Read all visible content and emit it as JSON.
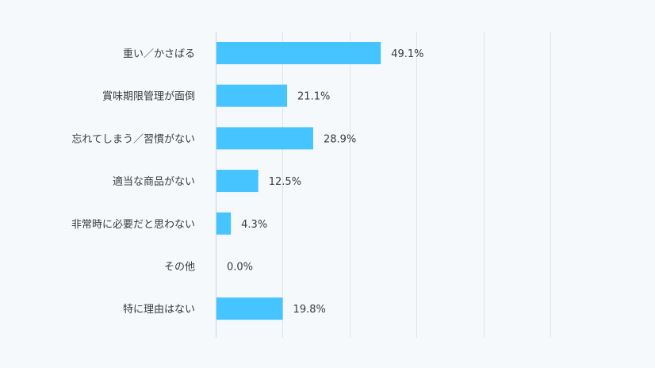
{
  "chart_data": {
    "type": "bar",
    "orientation": "horizontal",
    "categories": [
      "重い／かさばる",
      "賞味期限管理が面倒",
      "忘れてしまう／習慣がない",
      "適当な商品がない",
      "非常時に必要だと思わない",
      "その他",
      "特に理由はない"
    ],
    "values": [
      49.1,
      21.1,
      28.9,
      12.5,
      4.3,
      0.0,
      19.8
    ],
    "value_labels": [
      "49.1%",
      "21.1%",
      "28.9%",
      "12.5%",
      "4.3%",
      "0.0%",
      "19.8%"
    ],
    "xlim": [
      0,
      100
    ],
    "grid": true,
    "legend": false,
    "bar_color": "#45c4ff",
    "background_color": "#f5f9fc"
  }
}
